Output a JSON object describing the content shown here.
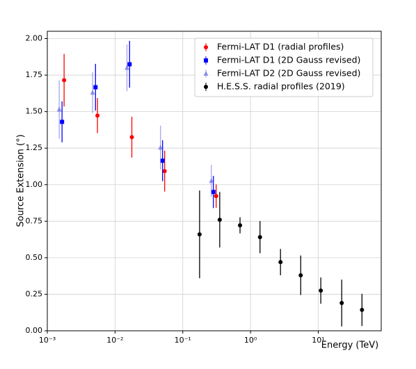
{
  "chart_data": {
    "type": "scatter",
    "x_label": "Energy (TeV)",
    "y_label": "Source Extension (°)",
    "xlog": true,
    "grid": true,
    "legend": "upper right",
    "xlim": [
      0.001,
      85
    ],
    "ylim": [
      0,
      2.05
    ],
    "xticks": [
      {
        "value": 0.001,
        "label": "10⁻³"
      },
      {
        "value": 0.01,
        "label": "10⁻²"
      },
      {
        "value": 0.1,
        "label": "10⁻¹"
      },
      {
        "value": 1,
        "label": "10⁰"
      },
      {
        "value": 10,
        "label": "10¹"
      }
    ],
    "yticks": [
      {
        "value": 0,
        "label": "0.00"
      },
      {
        "value": 0.25,
        "label": "0.25"
      },
      {
        "value": 0.5,
        "label": "0.50"
      },
      {
        "value": 0.75,
        "label": "0.75"
      },
      {
        "value": 1,
        "label": "1.00"
      },
      {
        "value": 1.25,
        "label": "1.25"
      },
      {
        "value": 1.5,
        "label": "1.50"
      },
      {
        "value": 1.75,
        "label": "1.75"
      },
      {
        "value": 2,
        "label": "2.00"
      }
    ],
    "series": [
      {
        "name": "Fermi-LAT D1 (radial profiles)",
        "color": "#ff0000",
        "marker": "circle",
        "x": [
          0.00177,
          0.0055,
          0.0177,
          0.054,
          0.311
        ],
        "values": [
          1.715,
          1.473,
          1.325,
          1.093,
          0.922
        ],
        "errors": [
          0.18,
          0.12,
          0.14,
          0.14,
          0.08
        ]
      },
      {
        "name": "Fermi-LAT D1 (2D Gauss revised)",
        "color": "#0000ff",
        "marker": "square",
        "x": [
          0.00165,
          0.00515,
          0.0164,
          0.0503,
          0.283
        ],
        "values": [
          1.43,
          1.667,
          1.824,
          1.164,
          0.95
        ],
        "errors": [
          0.14,
          0.16,
          0.16,
          0.14,
          0.11
        ]
      },
      {
        "name": "Fermi-LAT D2 (2D Gauss revised)",
        "color": "#6a6ae6",
        "marker": "triangle",
        "x": [
          0.0015,
          0.00466,
          0.015,
          0.0469,
          0.264
        ],
        "values": [
          1.515,
          1.63,
          1.8,
          1.254,
          1.026
        ],
        "errors": [
          0.2,
          0.14,
          0.16,
          0.15,
          0.11
        ]
      },
      {
        "name": "H.E.S.S. radial profiles (2019)",
        "color": "#000000",
        "marker": "circle",
        "x": [
          0.177,
          0.351,
          0.7,
          1.38,
          2.77,
          5.51,
          10.9,
          22.2,
          44.2
        ],
        "values": [
          0.66,
          0.76,
          0.722,
          0.641,
          0.47,
          0.38,
          0.275,
          0.19,
          0.143
        ],
        "errors": [
          0.3,
          0.19,
          0.055,
          0.11,
          0.09,
          0.135,
          0.09,
          0.16,
          0.11
        ]
      }
    ]
  }
}
